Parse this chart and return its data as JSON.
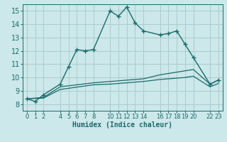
{
  "xlabel": "Humidex (Indice chaleur)",
  "ylabel": "",
  "bg_color": "#cce8ea",
  "grid_color": "#aacccc",
  "line_color": "#1a6b6b",
  "xticks": [
    0,
    1,
    2,
    4,
    5,
    6,
    7,
    8,
    10,
    11,
    12,
    13,
    14,
    16,
    17,
    18,
    19,
    20,
    22,
    23
  ],
  "xlim": [
    -0.5,
    23.5
  ],
  "ylim": [
    7.5,
    15.5
  ],
  "yticks": [
    8,
    9,
    10,
    11,
    12,
    13,
    14,
    15
  ],
  "series1_x": [
    0,
    1,
    2,
    4,
    5,
    6,
    7,
    8,
    10,
    11,
    12,
    13,
    14,
    16,
    17,
    18,
    19,
    20,
    22,
    23
  ],
  "series1_y": [
    8.4,
    8.2,
    8.7,
    9.5,
    10.8,
    12.1,
    12.0,
    12.1,
    15.0,
    14.6,
    15.3,
    14.1,
    13.5,
    13.2,
    13.3,
    13.5,
    12.5,
    11.5,
    9.5,
    9.8
  ],
  "series2_x": [
    0,
    2,
    4,
    8,
    10,
    14,
    16,
    19,
    20,
    22,
    23
  ],
  "series2_y": [
    8.4,
    8.5,
    9.3,
    9.6,
    9.7,
    9.9,
    10.2,
    10.5,
    10.6,
    9.5,
    9.8
  ],
  "series3_x": [
    0,
    2,
    4,
    8,
    10,
    14,
    16,
    19,
    20,
    22,
    23
  ],
  "series3_y": [
    8.4,
    8.45,
    9.1,
    9.45,
    9.5,
    9.7,
    9.85,
    10.0,
    10.1,
    9.3,
    9.55
  ]
}
